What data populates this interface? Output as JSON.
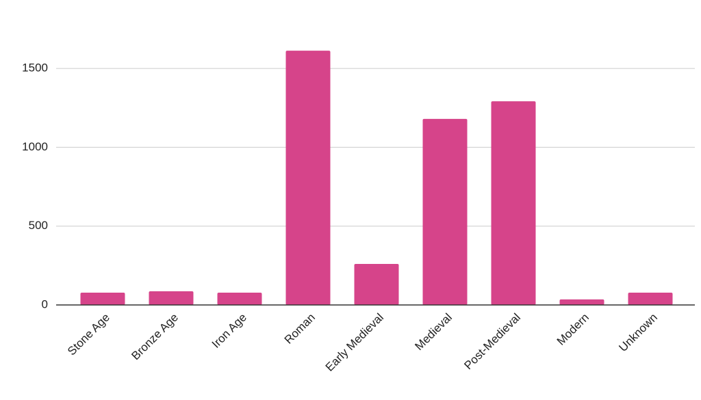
{
  "chart_data": {
    "type": "bar",
    "categories": [
      "Stone Age",
      "Bronze Age",
      "Iron Age",
      "Roman",
      "Early Medieval",
      "Medieval",
      "Post-Medieval",
      "Modern",
      "Unknown"
    ],
    "values": [
      78,
      87,
      78,
      1613,
      260,
      1180,
      1292,
      35,
      78
    ],
    "color": "#d6448a",
    "ylim": [
      0,
      1750
    ],
    "yticks": [
      0,
      500,
      1000,
      1500
    ],
    "grid": true
  }
}
